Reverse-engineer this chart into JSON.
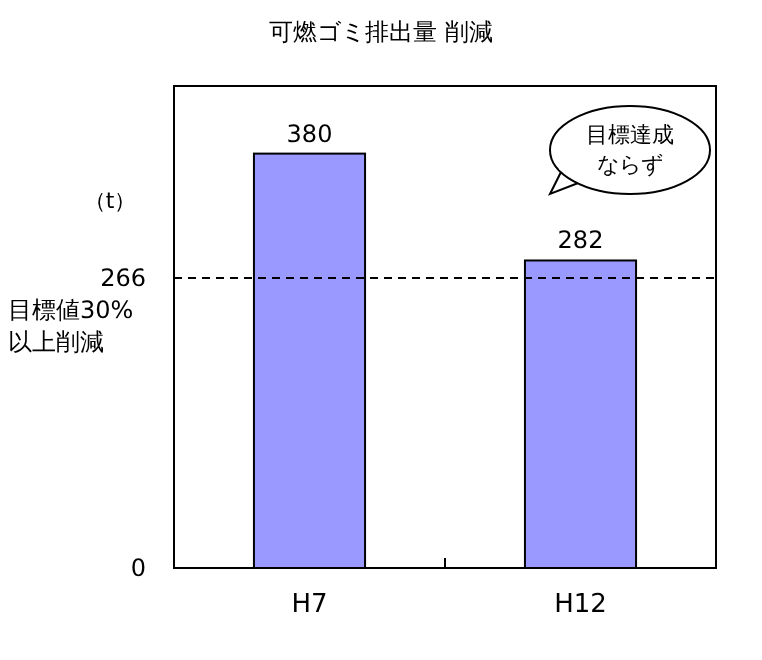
{
  "chart_data": {
    "type": "bar",
    "title": "可燃ゴミ排出量 削減",
    "ylabel": "（t）",
    "categories": [
      "H7",
      "H12"
    ],
    "values": [
      380,
      282
    ],
    "color": "#9999ff",
    "data_labels": true,
    "ylim": [
      0,
      442
    ],
    "yticks": [
      0,
      266
    ],
    "grid": false,
    "ref_lines": [
      {
        "axis": "y",
        "value": 266,
        "label": "目標値30%以上削減",
        "line_style": "dashed",
        "color": "#000000"
      }
    ],
    "annotations": [
      "目標達成ならず"
    ]
  }
}
